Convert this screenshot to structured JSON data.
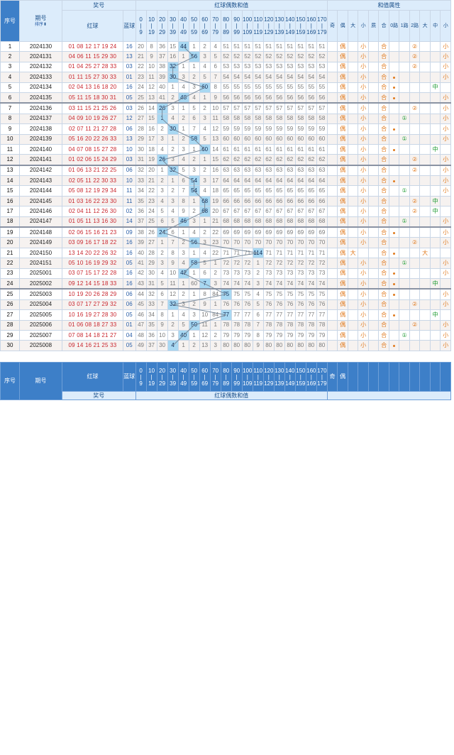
{
  "header": {
    "seq": "序号",
    "issue": "期号",
    "sort": "排序",
    "award": "奖号",
    "red": "红球",
    "blue": "蓝球",
    "sum_group": "红球偶数和值",
    "attr_group": "和值属性",
    "ranges": [
      [
        "0",
        "|",
        "9"
      ],
      [
        "10",
        "|",
        "19"
      ],
      [
        "20",
        "|",
        "29"
      ],
      [
        "30",
        "|",
        "39"
      ],
      [
        "40",
        "|",
        "49"
      ],
      [
        "50",
        "|",
        "59"
      ],
      [
        "60",
        "|",
        "69"
      ],
      [
        "70",
        "|",
        "79"
      ],
      [
        "80",
        "|",
        "89"
      ],
      [
        "90",
        "|",
        "99"
      ],
      [
        "100",
        "|",
        "109"
      ],
      [
        "110",
        "|",
        "119"
      ],
      [
        "120",
        "|",
        "129"
      ],
      [
        "130",
        "|",
        "139"
      ],
      [
        "140",
        "|",
        "149"
      ],
      [
        "150",
        "|",
        "159"
      ],
      [
        "160",
        "|",
        "169"
      ],
      [
        "170",
        "|",
        "179"
      ]
    ],
    "attr_labels": [
      "奇",
      "偶",
      "大",
      "小",
      "质",
      "合",
      "0路",
      "1路",
      "2路",
      "大",
      "中",
      "小"
    ]
  },
  "rows": [
    {
      "seq": "1",
      "issue": "2024130",
      "red": "01 08 12 17 19 24",
      "blue": "16",
      "miss": [
        "20",
        "8",
        "36",
        "15",
        "44",
        "1",
        "2",
        "4",
        "51",
        "51",
        "51",
        "51",
        "51",
        "51",
        "51",
        "51",
        "51",
        "51"
      ],
      "hit": 4,
      "attr": {
        "parity": "偶",
        "size": "小",
        "prime": "合",
        "route": 2,
        "route_mark": "②",
        "zone": "小"
      }
    },
    {
      "seq": "2",
      "issue": "2024131",
      "red": "04 06 11 15 29 30",
      "blue": "13",
      "miss": [
        "21",
        "9",
        "37",
        "16",
        "1",
        "56",
        "3",
        "5",
        "52",
        "52",
        "52",
        "52",
        "52",
        "52",
        "52",
        "52",
        "52",
        "52"
      ],
      "hit": 5,
      "attr": {
        "parity": "偶",
        "size": "小",
        "prime": "合",
        "route": 2,
        "route_mark": "②",
        "zone": "小"
      }
    },
    {
      "seq": "3",
      "issue": "2024132",
      "red": "01 04 25 27 28 33",
      "blue": "03",
      "miss": [
        "22",
        "10",
        "38",
        "32",
        "1",
        "1",
        "4",
        "6",
        "53",
        "53",
        "53",
        "53",
        "53",
        "53",
        "53",
        "53",
        "53",
        "53"
      ],
      "hit": 3,
      "attr": {
        "parity": "偶",
        "size": "小",
        "prime": "合",
        "route": 2,
        "route_mark": "②",
        "zone": "小"
      }
    },
    {
      "seq": "4",
      "issue": "2024133",
      "red": "01 11 15 27 30 33",
      "blue": "01",
      "miss": [
        "23",
        "11",
        "39",
        "30",
        "3",
        "2",
        "5",
        "7",
        "54",
        "54",
        "54",
        "54",
        "54",
        "54",
        "54",
        "54",
        "54",
        "54"
      ],
      "hit": 3,
      "attr": {
        "parity": "偶",
        "size": "小",
        "prime": "合",
        "route": 0,
        "route_mark": "",
        "zone": "小"
      }
    },
    {
      "seq": "5",
      "issue": "2024134",
      "red": "02 04 13 16 18 20",
      "blue": "16",
      "miss": [
        "24",
        "12",
        "40",
        "1",
        "4",
        "3",
        "60",
        "8",
        "55",
        "55",
        "55",
        "55",
        "55",
        "55",
        "55",
        "55",
        "55",
        "55"
      ],
      "hit": 6,
      "attr": {
        "parity": "偶",
        "size": "小",
        "prime": "合",
        "route": 0,
        "route_mark": "",
        "zone": "中"
      }
    },
    {
      "seq": "6",
      "issue": "2024135",
      "red": "05 11 15 18 30 31",
      "blue": "05",
      "miss": [
        "25",
        "13",
        "41",
        "2",
        "48",
        "4",
        "1",
        "9",
        "56",
        "56",
        "56",
        "56",
        "56",
        "56",
        "56",
        "56",
        "56",
        "56"
      ],
      "hit": 4,
      "attr": {
        "parity": "偶",
        "size": "小",
        "prime": "合",
        "route": 0,
        "route_mark": "",
        "zone": "小"
      }
    },
    {
      "seq": "7",
      "issue": "2024136",
      "red": "03 11 15 21 25 26",
      "blue": "03",
      "miss": [
        "26",
        "14",
        "26",
        "3",
        "1",
        "5",
        "2",
        "10",
        "57",
        "57",
        "57",
        "57",
        "57",
        "57",
        "57",
        "57",
        "57",
        "57"
      ],
      "hit": 2,
      "attr": {
        "parity": "偶",
        "size": "小",
        "prime": "合",
        "route": 2,
        "route_mark": "②",
        "zone": "小"
      }
    },
    {
      "seq": "8",
      "issue": "2024137",
      "red": "04 09 10 19 26 27",
      "blue": "12",
      "miss": [
        "27",
        "15",
        "1",
        "4",
        "2",
        "6",
        "3",
        "11",
        "58",
        "58",
        "58",
        "58",
        "58",
        "58",
        "58",
        "58",
        "58",
        "58"
      ],
      "hit": 2,
      "attr": {
        "parity": "偶",
        "size": "小",
        "prime": "合",
        "route": 1,
        "route_mark": "①",
        "zone": "小"
      }
    },
    {
      "seq": "9",
      "issue": "2024138",
      "red": "02 07 11 21 27 28",
      "blue": "06",
      "miss": [
        "28",
        "16",
        "2",
        "30",
        "1",
        "7",
        "4",
        "12",
        "59",
        "59",
        "59",
        "59",
        "59",
        "59",
        "59",
        "59",
        "59",
        "59"
      ],
      "hit": 3,
      "attr": {
        "parity": "偶",
        "size": "小",
        "prime": "合",
        "route": 0,
        "route_mark": "",
        "zone": "小"
      }
    },
    {
      "seq": "10",
      "issue": "2024139",
      "red": "05 16 20 22 26 33",
      "blue": "13",
      "miss": [
        "29",
        "17",
        "3",
        "1",
        "2",
        "58",
        "5",
        "13",
        "60",
        "60",
        "60",
        "60",
        "60",
        "60",
        "60",
        "60",
        "60",
        "60"
      ],
      "hit": 5,
      "attr": {
        "parity": "偶",
        "size": "小",
        "prime": "合",
        "route": 1,
        "route_mark": "①",
        "zone": "小"
      }
    },
    {
      "seq": "11",
      "issue": "2024140",
      "red": "04 07 08 15 27 28",
      "blue": "10",
      "miss": [
        "30",
        "18",
        "4",
        "2",
        "3",
        "1",
        "60",
        "14",
        "61",
        "61",
        "61",
        "61",
        "61",
        "61",
        "61",
        "61",
        "61",
        "61"
      ],
      "hit": 6,
      "attr": {
        "parity": "偶",
        "size": "小",
        "prime": "合",
        "route": 0,
        "route_mark": "",
        "zone": "中"
      }
    },
    {
      "seq": "12",
      "issue": "2024141",
      "red": "01 02 06 15 24 29",
      "blue": "03",
      "miss": [
        "31",
        "19",
        "26",
        "3",
        "4",
        "2",
        "1",
        "15",
        "62",
        "62",
        "62",
        "62",
        "62",
        "62",
        "62",
        "62",
        "62",
        "62"
      ],
      "hit": 2,
      "attr": {
        "parity": "偶",
        "size": "小",
        "prime": "合",
        "route": 2,
        "route_mark": "②",
        "zone": "小"
      }
    },
    {
      "seq": "13",
      "issue": "2024142",
      "red": "01 06 13 21 22 25",
      "blue": "06",
      "miss": [
        "32",
        "20",
        "1",
        "32",
        "5",
        "3",
        "2",
        "16",
        "63",
        "63",
        "63",
        "63",
        "63",
        "63",
        "63",
        "63",
        "63",
        "63"
      ],
      "hit": 3,
      "attr": {
        "parity": "偶",
        "size": "小",
        "prime": "合",
        "route": 2,
        "route_mark": "②",
        "zone": "小"
      }
    },
    {
      "seq": "14",
      "issue": "2024143",
      "red": "02 05 11 22 30 33",
      "blue": "10",
      "miss": [
        "33",
        "21",
        "2",
        "1",
        "6",
        "54",
        "3",
        "17",
        "64",
        "64",
        "64",
        "64",
        "64",
        "64",
        "64",
        "64",
        "64",
        "64"
      ],
      "hit": 5,
      "attr": {
        "parity": "偶",
        "size": "小",
        "prime": "合",
        "route": 0,
        "route_mark": "",
        "zone": "小"
      }
    },
    {
      "seq": "15",
      "issue": "2024144",
      "red": "05 08 12 19 29 34",
      "blue": "11",
      "miss": [
        "34",
        "22",
        "3",
        "2",
        "7",
        "54",
        "4",
        "18",
        "65",
        "65",
        "65",
        "65",
        "65",
        "65",
        "65",
        "65",
        "65",
        "65"
      ],
      "hit": 5,
      "attr": {
        "parity": "偶",
        "size": "小",
        "prime": "合",
        "route": 1,
        "route_mark": "①",
        "zone": "小"
      }
    },
    {
      "seq": "16",
      "issue": "2024145",
      "red": "01 03 16 22 23 30",
      "blue": "11",
      "miss": [
        "35",
        "23",
        "4",
        "3",
        "8",
        "1",
        "68",
        "19",
        "66",
        "66",
        "66",
        "66",
        "66",
        "66",
        "66",
        "66",
        "66",
        "66"
      ],
      "hit": 6,
      "attr": {
        "parity": "偶",
        "size": "小",
        "prime": "合",
        "route": 2,
        "route_mark": "②",
        "zone": "中"
      }
    },
    {
      "seq": "17",
      "issue": "2024146",
      "red": "02 04 11 12 26 30",
      "blue": "02",
      "miss": [
        "36",
        "24",
        "5",
        "4",
        "9",
        "2",
        "68",
        "20",
        "67",
        "67",
        "67",
        "67",
        "67",
        "67",
        "67",
        "67",
        "67",
        "67"
      ],
      "hit": 6,
      "attr": {
        "parity": "偶",
        "size": "小",
        "prime": "合",
        "route": 2,
        "route_mark": "②",
        "zone": "中"
      }
    },
    {
      "seq": "18",
      "issue": "2024147",
      "red": "01 05 11 13 16 30",
      "blue": "14",
      "miss": [
        "37",
        "25",
        "6",
        "5",
        "46",
        "3",
        "1",
        "21",
        "68",
        "68",
        "68",
        "68",
        "68",
        "68",
        "68",
        "68",
        "68",
        "68"
      ],
      "hit": 4,
      "attr": {
        "parity": "偶",
        "size": "小",
        "prime": "合",
        "route": 1,
        "route_mark": "①",
        "zone": "小"
      }
    },
    {
      "seq": "19",
      "issue": "2024148",
      "red": "02 06 15 16 21 23",
      "blue": "09",
      "miss": [
        "38",
        "26",
        "24",
        "6",
        "1",
        "4",
        "2",
        "22",
        "69",
        "69",
        "69",
        "69",
        "69",
        "69",
        "69",
        "69",
        "69",
        "69"
      ],
      "hit": 2,
      "attr": {
        "parity": "偶",
        "size": "小",
        "prime": "合",
        "route": 0,
        "route_mark": "",
        "zone": "小"
      }
    },
    {
      "seq": "20",
      "issue": "2024149",
      "red": "03 09 16 17 18 22",
      "blue": "16",
      "miss": [
        "39",
        "27",
        "1",
        "7",
        "2",
        "56",
        "3",
        "23",
        "70",
        "70",
        "70",
        "70",
        "70",
        "70",
        "70",
        "70",
        "70",
        "70"
      ],
      "hit": 5,
      "attr": {
        "parity": "偶",
        "size": "小",
        "prime": "合",
        "route": 2,
        "route_mark": "②",
        "zone": "小"
      }
    },
    {
      "seq": "21",
      "issue": "2024150",
      "red": "13 14 20 22 26 32",
      "blue": "16",
      "miss": [
        "40",
        "28",
        "2",
        "8",
        "3",
        "1",
        "4",
        "22",
        "71",
        "71",
        "71",
        "114",
        "71",
        "71",
        "71",
        "71",
        "71",
        "71"
      ],
      "hit": 11,
      "attr": {
        "parity": "偶",
        "size": "大",
        "prime": "合",
        "route": 0,
        "route_mark": "",
        "zone": "大"
      }
    },
    {
      "seq": "22",
      "issue": "2024151",
      "red": "05 10 16 19 29 32",
      "blue": "05",
      "miss": [
        "41",
        "29",
        "3",
        "9",
        "4",
        "58",
        "5",
        "1",
        "72",
        "72",
        "72",
        "1",
        "72",
        "72",
        "72",
        "72",
        "72",
        "72"
      ],
      "hit": 5,
      "attr": {
        "parity": "偶",
        "size": "小",
        "prime": "合",
        "route": 1,
        "route_mark": "①",
        "zone": "小"
      }
    },
    {
      "seq": "23",
      "issue": "2025001",
      "red": "03 07 15 17 22 28",
      "blue": "16",
      "miss": [
        "42",
        "30",
        "4",
        "10",
        "42",
        "1",
        "6",
        "2",
        "73",
        "73",
        "73",
        "2",
        "73",
        "73",
        "73",
        "73",
        "73",
        "73"
      ],
      "hit": 4,
      "attr": {
        "parity": "偶",
        "size": "小",
        "prime": "合",
        "route": 0,
        "route_mark": "",
        "zone": "小"
      }
    },
    {
      "seq": "24",
      "issue": "2025002",
      "red": "09 12 14 15 18 33",
      "blue": "16",
      "miss": [
        "43",
        "31",
        "5",
        "11",
        "1",
        "60",
        "7",
        "3",
        "74",
        "74",
        "74",
        "3",
        "74",
        "74",
        "74",
        "74",
        "74",
        "74"
      ],
      "hit": 6,
      "attr": {
        "parity": "偶",
        "size": "小",
        "prime": "合",
        "route": 0,
        "route_mark": "",
        "zone": "中"
      }
    },
    {
      "seq": "25",
      "issue": "2025003",
      "red": "10 19 20 26 28 29",
      "blue": "06",
      "miss": [
        "44",
        "32",
        "6",
        "12",
        "2",
        "1",
        "8",
        "84",
        "75",
        "75",
        "75",
        "4",
        "75",
        "75",
        "75",
        "75",
        "75",
        "75"
      ],
      "hit": 8,
      "attr": {
        "parity": "偶",
        "size": "小",
        "prime": "合",
        "route": 0,
        "route_mark": "",
        "zone": "小"
      }
    },
    {
      "seq": "26",
      "issue": "2025004",
      "red": "03 07 17 27 29 32",
      "blue": "06",
      "miss": [
        "45",
        "33",
        "7",
        "32",
        "3",
        "2",
        "9",
        "1",
        "76",
        "76",
        "76",
        "5",
        "76",
        "76",
        "76",
        "76",
        "76",
        "76"
      ],
      "hit": 3,
      "attr": {
        "parity": "偶",
        "size": "小",
        "prime": "合",
        "route": 2,
        "route_mark": "②",
        "zone": "小"
      }
    },
    {
      "seq": "27",
      "issue": "2025005",
      "red": "10 16 19 27 28 30",
      "blue": "05",
      "miss": [
        "46",
        "34",
        "8",
        "1",
        "4",
        "3",
        "10",
        "84",
        "77",
        "77",
        "77",
        "6",
        "77",
        "77",
        "77",
        "77",
        "77",
        "77"
      ],
      "hit": 8,
      "attr": {
        "parity": "偶",
        "size": "小",
        "prime": "合",
        "route": 0,
        "route_mark": "",
        "zone": "中"
      }
    },
    {
      "seq": "28",
      "issue": "2025006",
      "red": "01 06 08 18 27 33",
      "blue": "01",
      "miss": [
        "47",
        "35",
        "9",
        "2",
        "5",
        "50",
        "11",
        "1",
        "78",
        "78",
        "78",
        "7",
        "78",
        "78",
        "78",
        "78",
        "78",
        "78"
      ],
      "hit": 5,
      "attr": {
        "parity": "偶",
        "size": "小",
        "prime": "合",
        "route": 2,
        "route_mark": "②",
        "zone": "小"
      }
    },
    {
      "seq": "29",
      "issue": "2025007",
      "red": "07 08 14 18 21 27",
      "blue": "04",
      "miss": [
        "48",
        "36",
        "10",
        "3",
        "40",
        "1",
        "12",
        "2",
        "79",
        "79",
        "79",
        "8",
        "79",
        "79",
        "79",
        "79",
        "79",
        "79"
      ],
      "hit": 4,
      "attr": {
        "parity": "偶",
        "size": "小",
        "prime": "合",
        "route": 1,
        "route_mark": "①",
        "zone": "小"
      }
    },
    {
      "seq": "30",
      "issue": "2025008",
      "red": "09 14 16 21 25 33",
      "blue": "05",
      "miss": [
        "49",
        "37",
        "30",
        "4",
        "1",
        "2",
        "13",
        "3",
        "80",
        "80",
        "80",
        "9",
        "80",
        "80",
        "80",
        "80",
        "80",
        "80"
      ],
      "hit": 3,
      "attr": {
        "parity": "偶",
        "size": "小",
        "prime": "合",
        "route": 0,
        "route_mark": "",
        "zone": "小"
      }
    }
  ],
  "footer": {
    "seq": "序号",
    "issue": "期号",
    "red": "红球",
    "blue": "蓝球",
    "award": "奖号",
    "sum_group": "红球偶数和值",
    "attr_partial": [
      "奇",
      "偶"
    ]
  },
  "colors": {
    "header_blue": "#3d7fc8",
    "header_light": "#dcecfb",
    "red_ball": "#c8262e",
    "blue_ball": "#2a5fa8",
    "hit_cell": "#a8d8f2",
    "attr_orange": "#e07a1e",
    "attr_green": "#1a9a2e"
  }
}
